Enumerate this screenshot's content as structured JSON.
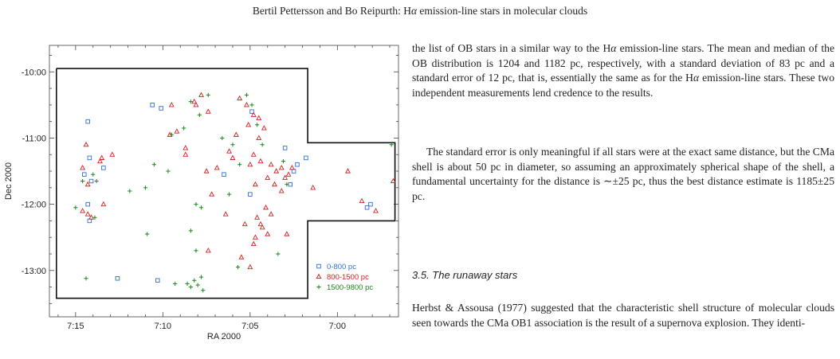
{
  "header": {
    "authors": "Bertil Pettersson and Bo Reipurth:",
    "title_pre": "H",
    "title_alpha": "α",
    "title_post": " emission-line stars in molecular clouds"
  },
  "text": {
    "p1_a": "the list of OB stars in a similar way to the H",
    "p1_alpha": "α",
    "p1_b": " emission-line stars. The mean and median of the OB distribution is 1204 and 1182 pc, respectively, with a standard deviation of 83 pc and a standard error of 12 pc, that is, essentially the same as for the H",
    "p1_alpha2": "α",
    "p1_c": " emission-line stars. These two independent measurements lend credence to the results.",
    "p2": "The standard error is only meaningful if all stars were at the exact same distance, but the CMa shell is about 50 pc in diameter, so assuming an approximately spherical shape of the shell, a fundamental uncertainty for the distance is ∼±25 pc, thus the best distance estimate is 1185±25 pc.",
    "section": "3.5. The runaway stars",
    "p3": "Herbst & Assousa (1977) suggested that the characteristic shell structure of molecular clouds seen towards the CMa OB1 association is the result of a supernova explosion. They identi-"
  },
  "chart_data": {
    "type": "scatter",
    "xlabel": "RA 2000",
    "ylabel": "Dec 2000",
    "x_unit": "minutes of RA past 7h",
    "y_unit": "degrees Dec",
    "x_ticks": [
      "7:15",
      "7:10",
      "7:05",
      "7:00"
    ],
    "x_tick_values": [
      15,
      10,
      5,
      0
    ],
    "y_ticks": [
      "-10:00",
      "-11:00",
      "-12:00",
      "-13:00"
    ],
    "y_tick_values": [
      -10,
      -11,
      -12,
      -13
    ],
    "xlim": [
      16.5,
      -3.5
    ],
    "ylim": [
      -13.7,
      -9.6
    ],
    "x_reversed": true,
    "boundary": [
      [
        16.1,
        -9.95
      ],
      [
        1.7,
        -9.95
      ],
      [
        1.7,
        -11.07
      ],
      [
        -3.3,
        -11.07
      ],
      [
        -3.3,
        -12.25
      ],
      [
        1.7,
        -12.25
      ],
      [
        1.7,
        -13.42
      ],
      [
        16.1,
        -13.42
      ],
      [
        16.1,
        -9.95
      ]
    ],
    "legend": {
      "placement": "bottom-right"
    },
    "series": [
      {
        "name": "0-800 pc",
        "marker": "square",
        "color": "#2e6fdc",
        "points": [
          [
            14.3,
            -10.75
          ],
          [
            14.2,
            -11.3
          ],
          [
            14.5,
            -11.55
          ],
          [
            13.4,
            -11.45
          ],
          [
            14.3,
            -12.0
          ],
          [
            14.2,
            -12.25
          ],
          [
            14.1,
            -11.65
          ],
          [
            10.6,
            -10.5
          ],
          [
            10.1,
            -10.55
          ],
          [
            10.3,
            -13.15
          ],
          [
            4.9,
            -10.6
          ],
          [
            3.0,
            -11.15
          ],
          [
            2.7,
            -11.7
          ],
          [
            2.3,
            -11.4
          ],
          [
            6.5,
            -11.55
          ],
          [
            5.0,
            -11.85
          ],
          [
            1.8,
            -11.3
          ],
          [
            2.5,
            -11.5
          ],
          [
            -1.7,
            -12.05
          ],
          [
            -1.9,
            -12.0
          ],
          [
            12.6,
            -13.12
          ]
        ]
      },
      {
        "name": "800-1500 pc",
        "marker": "triangle",
        "color": "#d42020",
        "points": [
          [
            14.4,
            -11.1
          ],
          [
            13.5,
            -11.3
          ],
          [
            13.6,
            -11.35
          ],
          [
            12.9,
            -11.25
          ],
          [
            14.6,
            -11.45
          ],
          [
            14.3,
            -11.7
          ],
          [
            14.6,
            -12.1
          ],
          [
            14.3,
            -12.15
          ],
          [
            14.1,
            -12.2
          ],
          [
            13.4,
            -12.0
          ],
          [
            9.6,
            -10.95
          ],
          [
            9.2,
            -10.9
          ],
          [
            9.5,
            -10.5
          ],
          [
            8.2,
            -10.45
          ],
          [
            8.1,
            -10.5
          ],
          [
            7.8,
            -10.35
          ],
          [
            7.4,
            -10.6
          ],
          [
            8.7,
            -11.15
          ],
          [
            8.7,
            -11.25
          ],
          [
            7.5,
            -11.5
          ],
          [
            7.2,
            -11.85
          ],
          [
            6.4,
            -12.15
          ],
          [
            7.4,
            -12.7
          ],
          [
            5.5,
            -12.8
          ],
          [
            5.0,
            -12.95
          ],
          [
            4.7,
            -12.5
          ],
          [
            4.4,
            -12.3
          ],
          [
            4.6,
            -12.2
          ],
          [
            4.1,
            -12.05
          ],
          [
            3.8,
            -12.15
          ],
          [
            4.3,
            -12.35
          ],
          [
            4.0,
            -12.45
          ],
          [
            5.6,
            -10.4
          ],
          [
            5.2,
            -10.5
          ],
          [
            5.1,
            -10.8
          ],
          [
            4.8,
            -10.65
          ],
          [
            4.5,
            -10.7
          ],
          [
            4.2,
            -10.85
          ],
          [
            4.5,
            -11.0
          ],
          [
            4.8,
            -11.25
          ],
          [
            5.0,
            -11.4
          ],
          [
            4.4,
            -11.35
          ],
          [
            3.8,
            -11.4
          ],
          [
            3.5,
            -11.5
          ],
          [
            3.2,
            -11.45
          ],
          [
            2.8,
            -11.55
          ],
          [
            2.6,
            -11.45
          ],
          [
            4.7,
            -11.7
          ],
          [
            4.0,
            -11.6
          ],
          [
            3.6,
            -11.7
          ],
          [
            3.2,
            -11.8
          ],
          [
            6.0,
            -11.3
          ],
          [
            6.2,
            -11.2
          ],
          [
            5.8,
            -10.95
          ],
          [
            3.0,
            -11.6
          ],
          [
            2.9,
            -12.45
          ],
          [
            1.4,
            -11.75
          ],
          [
            -0.6,
            -11.5
          ],
          [
            -1.4,
            -11.95
          ],
          [
            -2.2,
            -12.1
          ],
          [
            -3.2,
            -11.65
          ],
          [
            6.9,
            -11.45
          ],
          [
            4.8,
            -12.6
          ],
          [
            5.3,
            -12.3
          ]
        ]
      },
      {
        "name": "1500-9800 pc",
        "marker": "plus",
        "color": "#1a8a1a",
        "points": [
          [
            15.0,
            -12.05
          ],
          [
            14.6,
            -11.65
          ],
          [
            14.0,
            -11.55
          ],
          [
            13.8,
            -11.65
          ],
          [
            13.9,
            -12.2
          ],
          [
            11.9,
            -11.8
          ],
          [
            11.0,
            -11.75
          ],
          [
            10.5,
            -11.4
          ],
          [
            9.7,
            -11.5
          ],
          [
            9.5,
            -10.95
          ],
          [
            8.8,
            -10.85
          ],
          [
            8.4,
            -10.45
          ],
          [
            7.9,
            -10.65
          ],
          [
            7.4,
            -10.35
          ],
          [
            6.6,
            -11.0
          ],
          [
            6.0,
            -11.1
          ],
          [
            5.6,
            -11.4
          ],
          [
            8.4,
            -12.4
          ],
          [
            8.1,
            -12.0
          ],
          [
            7.8,
            -12.05
          ],
          [
            8.1,
            -12.7
          ],
          [
            10.9,
            -12.45
          ],
          [
            8.2,
            -13.15
          ],
          [
            8.4,
            -13.25
          ],
          [
            7.8,
            -13.1
          ],
          [
            8.0,
            -13.22
          ],
          [
            7.7,
            -13.3
          ],
          [
            8.6,
            -13.2
          ],
          [
            9.3,
            -13.2
          ],
          [
            14.4,
            -13.12
          ],
          [
            5.2,
            -10.35
          ],
          [
            4.9,
            -10.5
          ],
          [
            4.6,
            -10.8
          ],
          [
            4.3,
            -11.1
          ],
          [
            3.1,
            -11.35
          ],
          [
            2.9,
            -11.7
          ],
          [
            6.2,
            -11.85
          ],
          [
            3.4,
            -12.75
          ],
          [
            -3.1,
            -11.1
          ],
          [
            5.7,
            -12.95
          ]
        ]
      }
    ]
  }
}
